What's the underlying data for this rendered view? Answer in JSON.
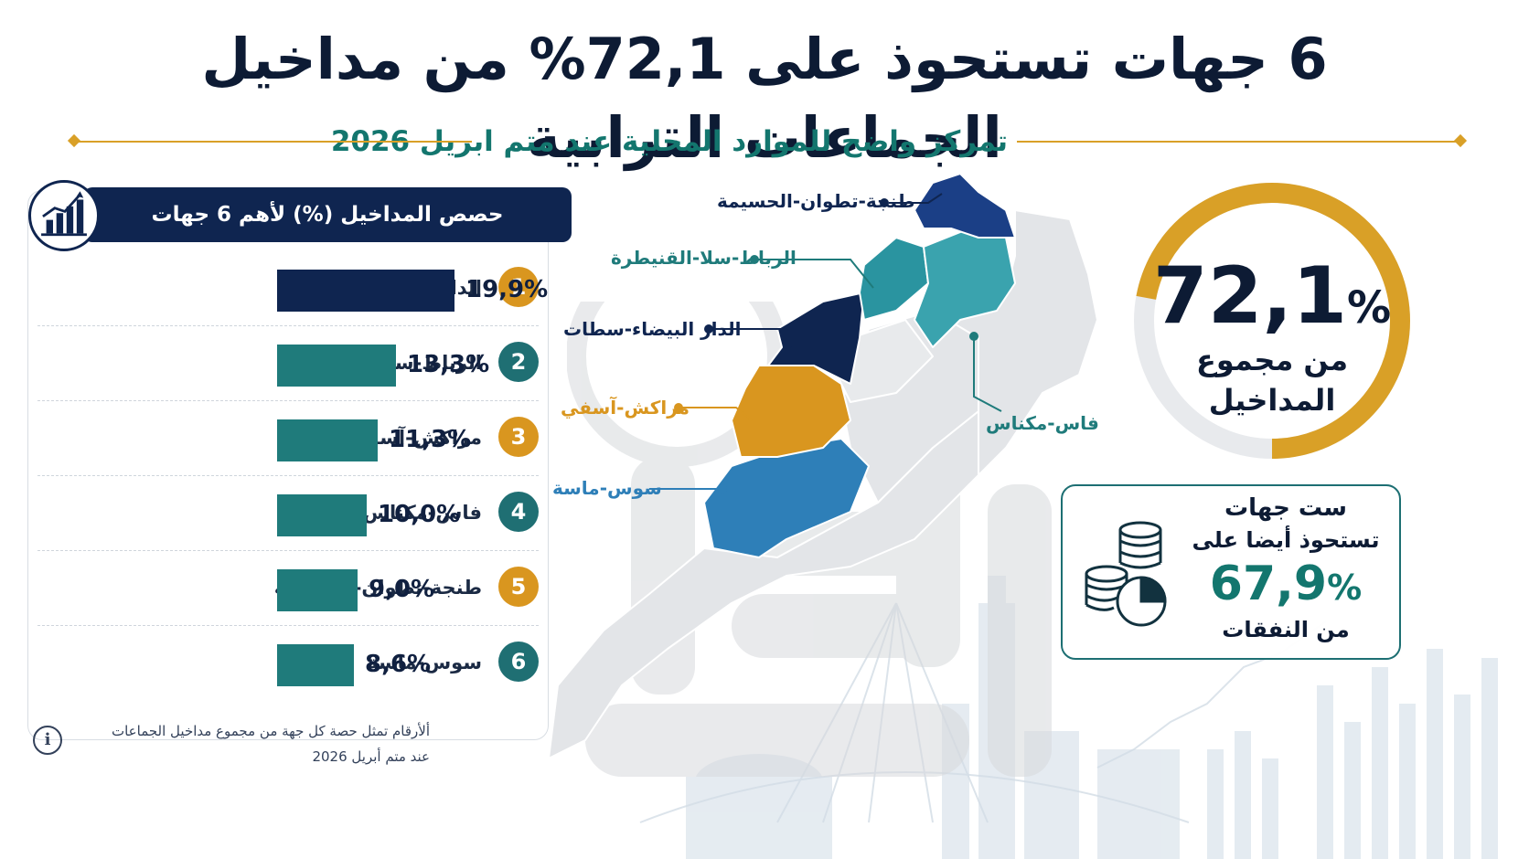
{
  "title": "6 جهات تستحوذ على 72,1% من مداخيل الجماعات الترابية",
  "subtitle": "تمركز واضح للموارد المحلية عند متم ابريل 2026",
  "panel": {
    "title": "حصص المداخيل (%) لأهم 6 جهات",
    "icon": "bar-chart-growth-icon"
  },
  "chart_data": {
    "type": "bar",
    "orientation": "horizontal",
    "title": "حصص المداخيل (%) لأهم 6 جهات",
    "categories": [
      "الدار البيضاء-سطات",
      "الرباط-سلا-القنيطرة",
      "مراكش-آسفي",
      "فاس-مكناس",
      "طنجة-تطوان-الحسيمة",
      "سوس-ماسة"
    ],
    "ranks": [
      "1",
      "2",
      "3",
      "4",
      "5",
      "6"
    ],
    "values": [
      19.9,
      13.3,
      11.3,
      10.0,
      9.0,
      8.6
    ],
    "value_labels": [
      "19,9%",
      "13,3%",
      "11,3%",
      "10,0%",
      "9,0%",
      "8,6%"
    ],
    "colors": [
      "#0f2550",
      "#1f7b7b",
      "#1f7b7b",
      "#1f7b7b",
      "#1f7b7b",
      "#1f7b7b"
    ],
    "rank_colors": [
      "#d9961f",
      "#1f6f73",
      "#d9961f",
      "#1f6f73",
      "#d9961f",
      "#1f6f73"
    ],
    "xlim": [
      0,
      20
    ]
  },
  "footnote": {
    "line1": "ألأرقام تمثل حصة كل جهة من مجموع مداخيل الجماعات",
    "line2": "عند متم أبريل 2026",
    "icon": "info-icon",
    "icon_glyph": "i"
  },
  "map": {
    "labels": [
      {
        "text": "طنجة-تطوان-الحسيمة",
        "color": "#0f2550"
      },
      {
        "text": "الرباط-سلا-القنيطرة",
        "color": "#1f7b7b"
      },
      {
        "text": "الدار البيضاء-سطات",
        "color": "#0f2550"
      },
      {
        "text": "مراكش-آسفي",
        "color": "#d9961f"
      },
      {
        "text": "سوس-ماسة",
        "color": "#2e7fb8"
      },
      {
        "text": "فاس-مكناس",
        "color": "#1f7b7b"
      }
    ]
  },
  "summary": {
    "share": 72.1,
    "value": "72,1",
    "pct": "%",
    "label": "من مجموع المداخيل",
    "ring_color": "#d9a027"
  },
  "card": {
    "line1": "ست جهات",
    "line2": "تستحوذ أيضا على",
    "value": "67,9",
    "pct": "%",
    "line3": "من النفقات",
    "icon": "coins-pie-icon"
  }
}
